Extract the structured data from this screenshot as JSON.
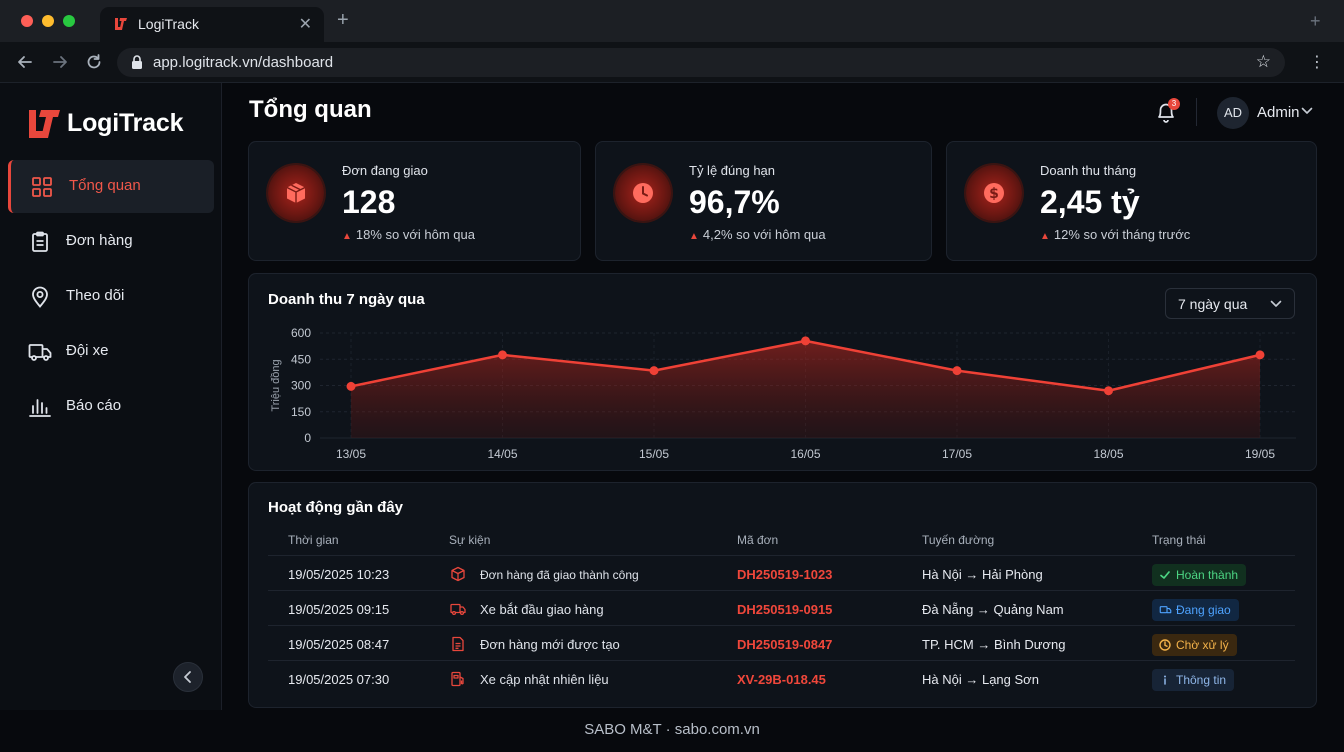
{
  "browser": {
    "tab_title": "LogiTrack",
    "url": "app.logitrack.vn/dashboard"
  },
  "sidebar": {
    "brand": "LogiTrack",
    "items": [
      {
        "label": "Tổng quan",
        "icon": "grid-icon",
        "active": true
      },
      {
        "label": "Đơn hàng",
        "icon": "clipboard-icon",
        "active": false
      },
      {
        "label": "Theo dõi",
        "icon": "location-pin-icon",
        "active": false
      },
      {
        "label": "Đội xe",
        "icon": "truck-icon",
        "active": false
      },
      {
        "label": "Báo cáo",
        "icon": "bar-chart-icon",
        "active": false
      }
    ]
  },
  "header": {
    "title": "Tổng quan",
    "notification_count": "3",
    "user_initials": "AD",
    "user_name": "Admin"
  },
  "kpis": [
    {
      "label": "Đơn đang giao",
      "value": "128",
      "delta": "18% so với hôm qua",
      "icon": "box-icon"
    },
    {
      "label": "Tỷ lệ đúng hạn",
      "value": "96,7%",
      "delta": "4,2% so với hôm qua",
      "icon": "clock-icon"
    },
    {
      "label": "Doanh thu tháng",
      "value": "2,45 tỷ",
      "delta": "12% so với tháng trước",
      "icon": "dollar-icon"
    }
  ],
  "revenue_chart": {
    "title": "Doanh thu 7 ngày qua",
    "range_label": "7 ngày qua"
  },
  "chart_data": {
    "type": "area",
    "title": "Doanh thu 7 ngày qua",
    "ylabel": "Triệu đồng",
    "xlabel": "",
    "categories": [
      "13/05",
      "14/05",
      "15/05",
      "16/05",
      "17/05",
      "18/05",
      "19/05"
    ],
    "values": [
      295,
      475,
      385,
      555,
      385,
      270,
      475
    ],
    "ylim": [
      0,
      600
    ],
    "yticks": [
      0,
      150,
      300,
      450,
      600
    ],
    "grid": true,
    "line_color": "#ef4136"
  },
  "activity": {
    "title": "Hoạt động gần đây",
    "columns": [
      "Thời gian",
      "Sự kiện",
      "Mã đơn",
      "Tuyến đường",
      "Trạng thái"
    ],
    "rows": [
      {
        "time": "19/05/2025 10:23",
        "event": "Đơn hàng đã giao thành công",
        "event_icon": "box-icon",
        "code": "DH250519-1023",
        "route": "Hà Nội → Hải Phòng",
        "status": "Hoàn thành",
        "status_kind": "green",
        "status_icon": "check-icon"
      },
      {
        "time": "19/05/2025 09:15",
        "event": "Xe bắt đầu giao hàng",
        "event_icon": "truck-icon",
        "code": "DH250519-0915",
        "route": "Đà Nẵng → Quảng Nam",
        "status": "Đang giao",
        "status_kind": "blue",
        "status_icon": "truck-icon"
      },
      {
        "time": "19/05/2025 08:47",
        "event": "Đơn hàng mới được tạo",
        "event_icon": "document-icon",
        "code": "DH250519-0847",
        "route": "TP. HCM → Bình Dương",
        "status": "Chờ xử lý",
        "status_kind": "amber",
        "status_icon": "clock-icon"
      },
      {
        "time": "19/05/2025 07:30",
        "event": "Xe cập nhật nhiên liệu",
        "event_icon": "fuel-icon",
        "code": "XV-29B-018.45",
        "route": "Hà Nội → Lạng Sơn",
        "status": "Thông tin",
        "status_kind": "slate",
        "status_icon": "info-icon"
      }
    ]
  },
  "footer": {
    "text": "SABO M&T · sabo.com.vn"
  },
  "colors": {
    "accent": "#e8473c",
    "background": "#07090d",
    "card": "#0e131a"
  }
}
